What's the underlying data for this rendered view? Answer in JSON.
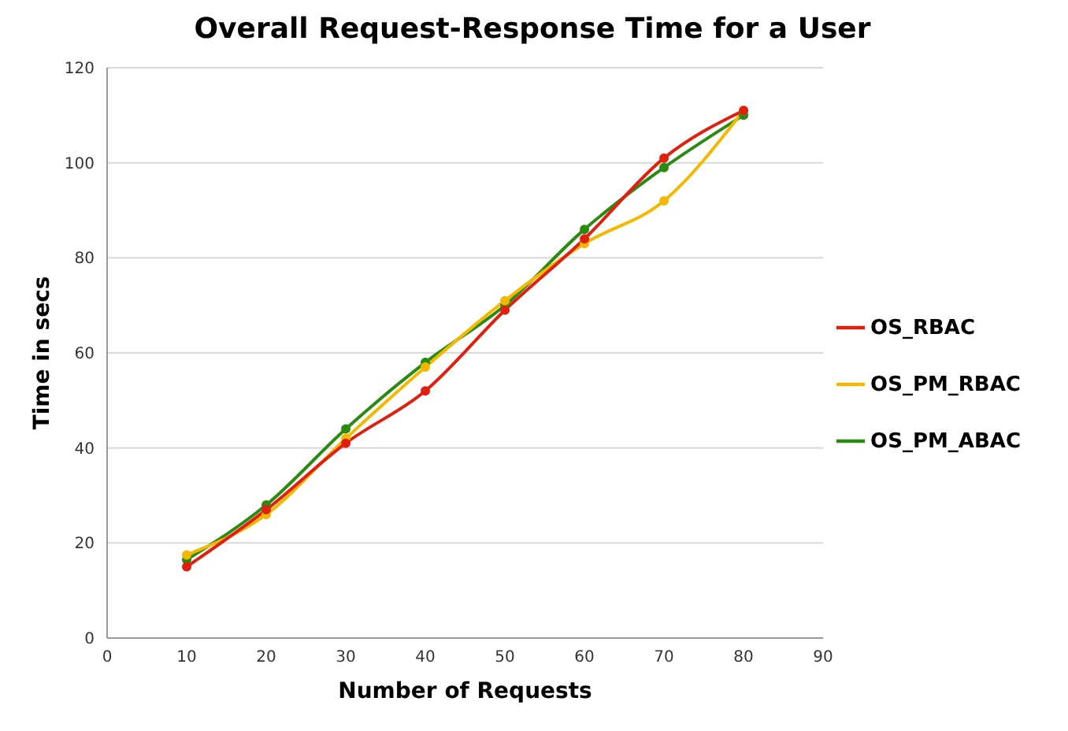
{
  "chart_data": {
    "type": "line",
    "title": "Overall Request-Response Time for a User",
    "xlabel": "Number of Requests",
    "ylabel": "Time in secs",
    "x": [
      10,
      20,
      30,
      40,
      50,
      60,
      70,
      80
    ],
    "series": [
      {
        "name": "OS_RBAC",
        "color": "#e0200f",
        "values": [
          15,
          27,
          41,
          52,
          69,
          84,
          101,
          111
        ]
      },
      {
        "name": "OS_PM_RBAC",
        "color": "#f5b800",
        "values": [
          17.5,
          26,
          42,
          57,
          71,
          83,
          92,
          111
        ]
      },
      {
        "name": "OS_PM_ABAC",
        "color": "#2a8a12",
        "values": [
          16.5,
          28,
          44,
          58,
          70,
          86,
          99,
          110
        ]
      }
    ],
    "xlim": [
      0,
      90
    ],
    "xticks": [
      0,
      10,
      20,
      30,
      40,
      50,
      60,
      70,
      80,
      90
    ],
    "ylim": [
      0,
      120
    ],
    "yticks": [
      0,
      20,
      40,
      60,
      80,
      100,
      120
    ],
    "grid": "y",
    "legend": "right",
    "marker": "circle",
    "line_style": "solid"
  }
}
